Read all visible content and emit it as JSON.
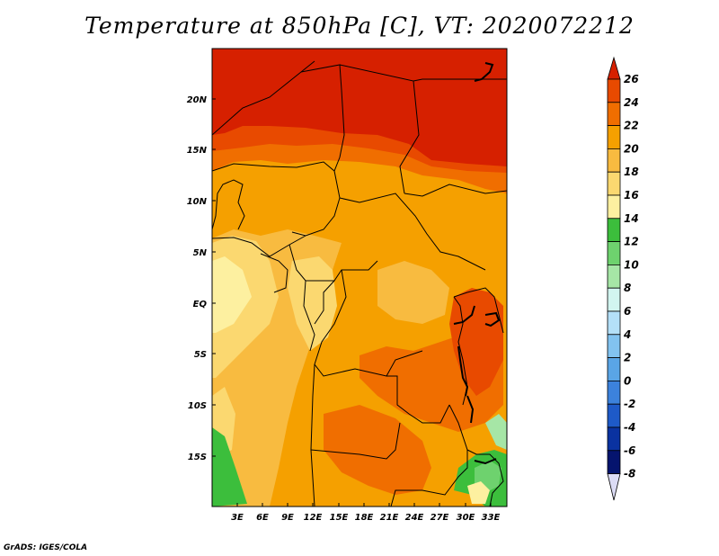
{
  "title": "Temperature at 850hPa [C], VT: 2020072212",
  "credit": "GrADS: IGES/COLA",
  "map": {
    "lat_labels": [
      "20N",
      "15N",
      "10N",
      "5N",
      "EQ",
      "5S",
      "10S",
      "15S"
    ],
    "lon_labels": [
      "3E",
      "6E",
      "9E",
      "12E",
      "15E",
      "18E",
      "21E",
      "24E",
      "27E",
      "30E",
      "33E"
    ]
  },
  "colorbar": {
    "levels": [
      "26",
      "24",
      "22",
      "20",
      "18",
      "16",
      "14",
      "12",
      "10",
      "8",
      "6",
      "4",
      "2",
      "0",
      "-2",
      "-4",
      "-6",
      "-8"
    ],
    "colors": [
      "#d62000",
      "#e84a00",
      "#f06e00",
      "#f5a000",
      "#f8bb40",
      "#fbd870",
      "#fdf0a0",
      "#3cbe3c",
      "#6ed26e",
      "#a6e6a6",
      "#d2f5f0",
      "#b4e0f8",
      "#82c3f0",
      "#5aa5e6",
      "#3c82dc",
      "#1e5ac8",
      "#0a32a0",
      "#05146e",
      "#dcdcf5"
    ]
  }
}
